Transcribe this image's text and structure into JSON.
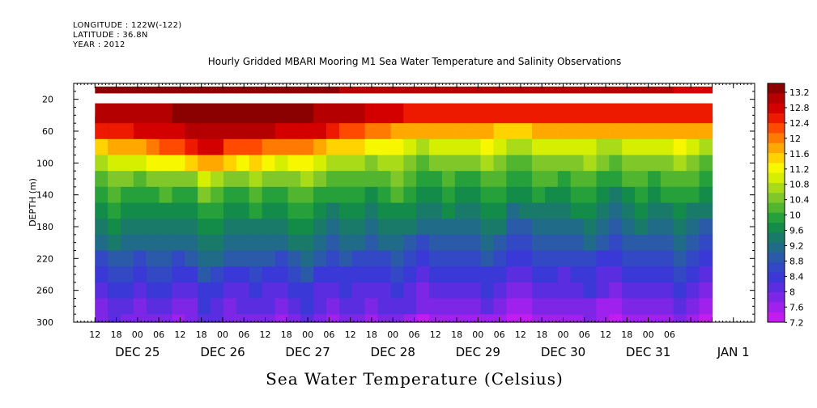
{
  "header": {
    "longitude": "LONGITUDE : 122W(-122)",
    "latitude": "LATITUDE : 36.8N",
    "year": "YEAR : 2012"
  },
  "chart_data": {
    "type": "heatmap",
    "title": "Hourly Gridded MBARI Mooring M1 Sea Water Temperature and Salinity Observations",
    "xlabel": "Sea Water Temperature (Celsius)",
    "ylabel": "DEPTH (m)",
    "ylim": [
      300,
      0
    ],
    "y_ticks": [
      20,
      60,
      100,
      140,
      180,
      220,
      260,
      300
    ],
    "x_hour_ticks": [
      "12",
      "18",
      "00",
      "06",
      "12",
      "18",
      "00",
      "06",
      "12",
      "18",
      "00",
      "06",
      "12",
      "18",
      "00",
      "06",
      "12",
      "18",
      "00",
      "06",
      "12",
      "18",
      "00",
      "06",
      "12",
      "18",
      "00",
      "06"
    ],
    "x_day_labels": [
      "DEC 25",
      "DEC 26",
      "DEC 27",
      "DEC 28",
      "DEC 29",
      "DEC 30",
      "DEC 31",
      "JAN  1"
    ],
    "colorbar_labels": [
      "13.2",
      "12.8",
      "12.4",
      "12",
      "11.6",
      "11.2",
      "10.8",
      "10.4",
      "10",
      "9.6",
      "9.2",
      "8.8",
      "8.4",
      "8",
      "7.6",
      "7.2"
    ],
    "colorbar_colors": [
      "#8b0000",
      "#b40000",
      "#d40000",
      "#ee1a00",
      "#ff4a00",
      "#ff7a00",
      "#ffa800",
      "#ffd200",
      "#f7f700",
      "#d6ee00",
      "#aadb18",
      "#80c82a",
      "#52b530",
      "#26a03a",
      "#138c4a",
      "#1a7a6a",
      "#1f6b88",
      "#2a5aa8",
      "#3348c4",
      "#3a38d6",
      "#5a2ee0",
      "#7d26e6",
      "#a020ec",
      "#c21cf0"
    ],
    "data_start_hours": 6,
    "data_hours": 174,
    "cells": 48,
    "depth_levels_m": [
      10,
      40,
      60,
      80,
      100,
      120,
      140,
      160,
      180,
      200,
      220,
      240,
      260,
      280,
      300
    ],
    "profile_samples": [
      {
        "time": "Dec 25 18",
        "temps": [
          13.2,
          13.0,
          12.4,
          11.4,
          10.6,
          10.1,
          9.8,
          9.5,
          9.2,
          9.0,
          8.6,
          8.3,
          8.0,
          7.8,
          7.6
        ]
      },
      {
        "time": "Dec 26 12",
        "temps": [
          13.2,
          13.2,
          13.0,
          12.6,
          11.6,
          10.6,
          10.0,
          9.7,
          9.4,
          9.1,
          8.8,
          8.4,
          8.1,
          7.9,
          7.7
        ]
      },
      {
        "time": "Dec 27 18",
        "temps": [
          13.2,
          13.2,
          12.8,
          11.8,
          10.9,
          10.3,
          9.9,
          9.6,
          9.3,
          9.0,
          8.7,
          8.4,
          8.1,
          7.9,
          7.6
        ]
      },
      {
        "time": "Dec 28 12",
        "temps": [
          13.0,
          12.6,
          11.7,
          10.9,
          10.4,
          10.0,
          9.7,
          9.4,
          9.1,
          8.8,
          8.5,
          8.2,
          8.0,
          7.8,
          7.5
        ]
      },
      {
        "time": "Dec 29 12",
        "temps": [
          13.0,
          12.4,
          11.5,
          10.8,
          10.3,
          9.9,
          9.6,
          9.3,
          9.0,
          8.7,
          8.4,
          8.1,
          7.9,
          7.6,
          7.3
        ]
      },
      {
        "time": "Dec 30 12",
        "temps": [
          13.0,
          12.5,
          11.6,
          10.8,
          10.3,
          9.9,
          9.6,
          9.3,
          9.0,
          8.7,
          8.4,
          8.1,
          7.9,
          7.6,
          7.4
        ]
      },
      {
        "time": "Jan 1 06",
        "temps": [
          12.8,
          12.4,
          11.6,
          10.9,
          10.4,
          10.0,
          9.7,
          9.4,
          9.1,
          8.8,
          8.5,
          8.2,
          7.9,
          7.7,
          7.4
        ]
      }
    ]
  }
}
